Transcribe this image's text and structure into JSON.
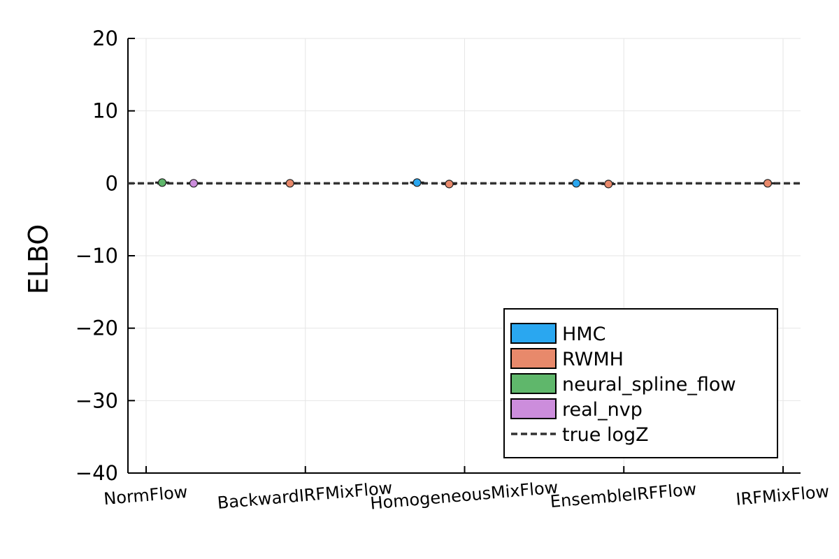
{
  "chart_data": {
    "type": "scatter",
    "title": "",
    "xlabel": "",
    "ylabel": "ELBO",
    "ylim": [
      -40,
      20
    ],
    "yticks": [
      20,
      10,
      0,
      -10,
      -20,
      -30,
      -40
    ],
    "ytick_labels": [
      "20",
      "10",
      "0",
      "−10",
      "−20",
      "−30",
      "−40"
    ],
    "categories": [
      "NormFlow",
      "BackwardIRFMixFlow",
      "HomogeneousMixFlow",
      "EnsembleIRFFlow",
      "IRFMixFlow"
    ],
    "grid": true,
    "legend_position": "bottom-right",
    "series": [
      {
        "name": "HMC",
        "color": "#2aa7f0",
        "values": [
          null,
          null,
          0.1,
          0.0,
          null
        ]
      },
      {
        "name": "RWMH",
        "color": "#e8896b",
        "values": [
          null,
          0.0,
          -0.1,
          -0.1,
          0.0
        ]
      },
      {
        "name": "neural_spline_flow",
        "color": "#5fb76b",
        "values": [
          0.1,
          null,
          null,
          null,
          null
        ]
      },
      {
        "name": "real_nvp",
        "color": "#cc8ddc",
        "values": [
          0.0,
          null,
          null,
          null,
          null
        ]
      }
    ],
    "reference_line": {
      "name": "true logZ",
      "value": 0.0,
      "style": "dashed",
      "color": "#333333"
    }
  }
}
